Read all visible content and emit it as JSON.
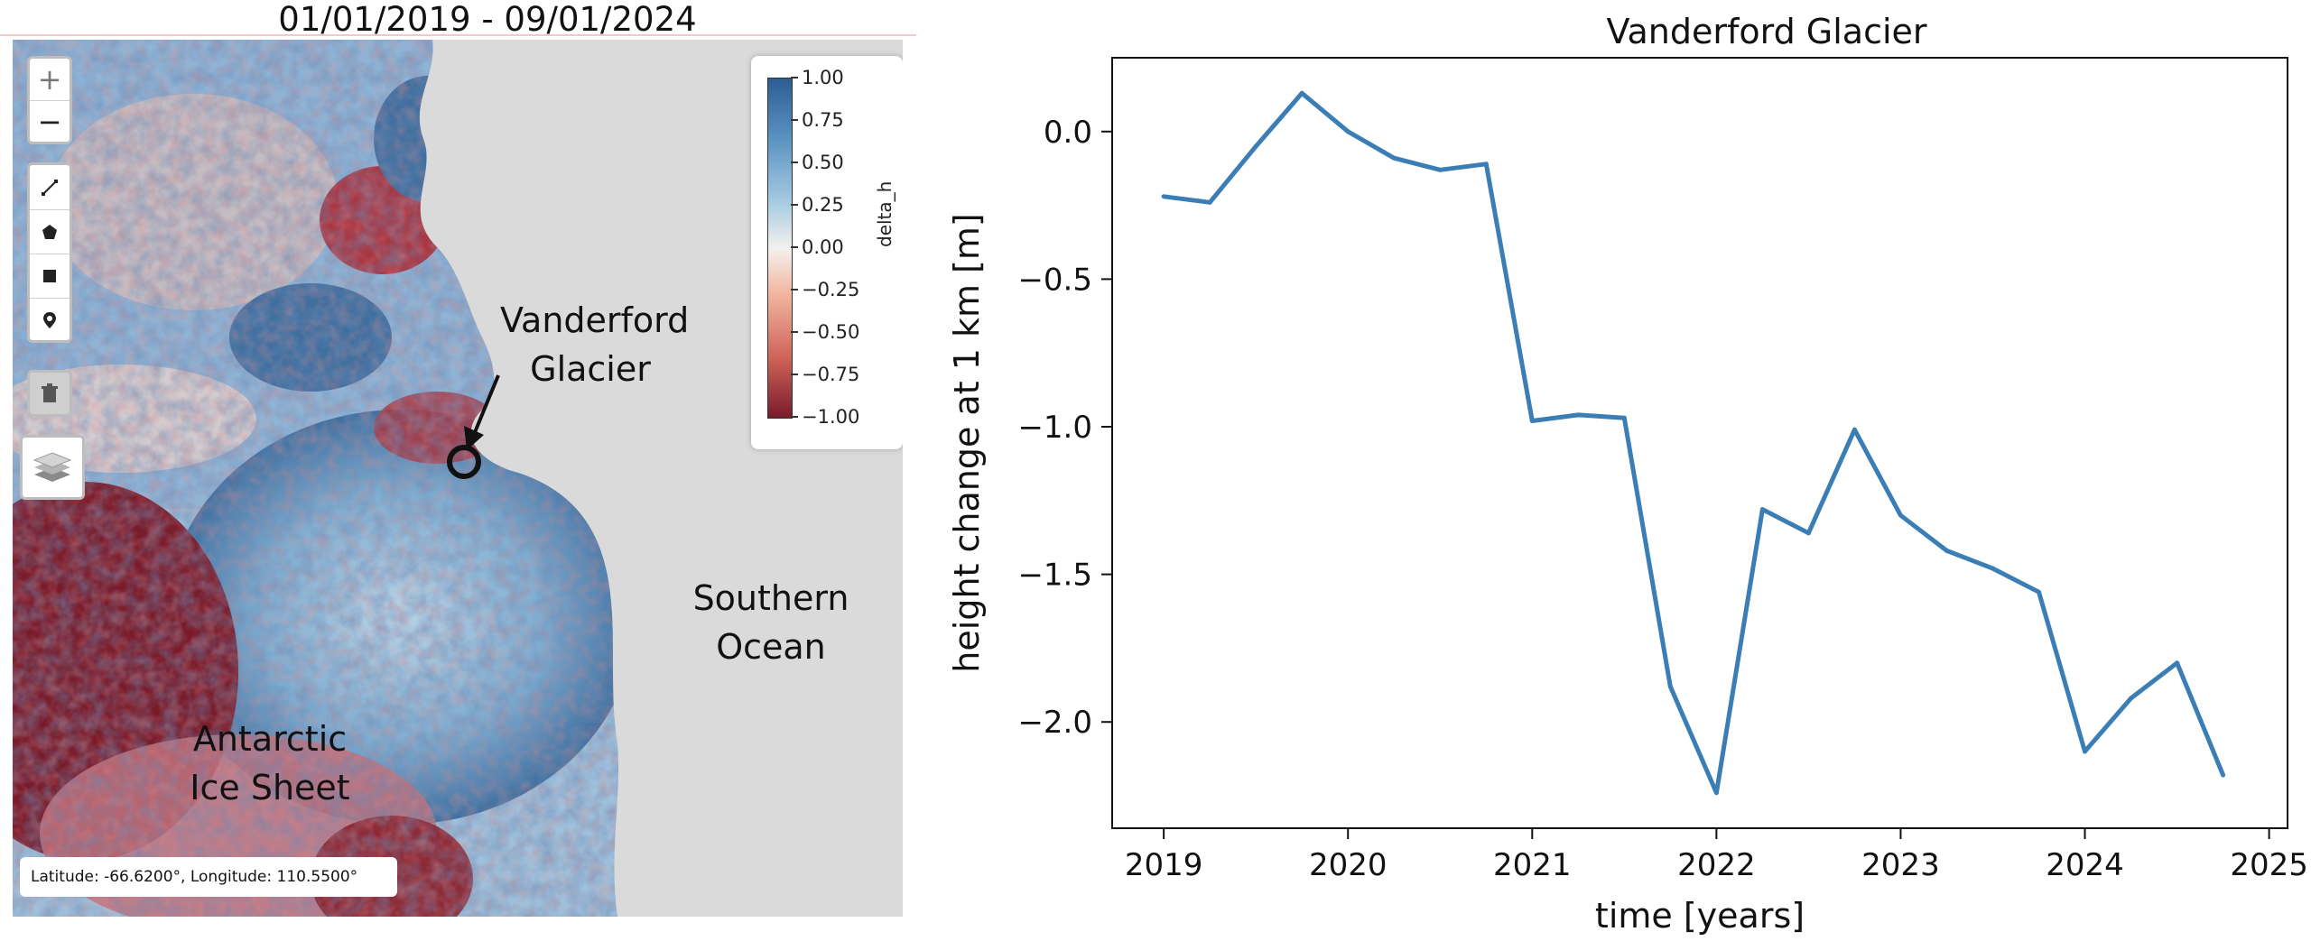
{
  "map_panel": {
    "title": "01/01/2019 - 09/01/2024",
    "labels": {
      "glacier_line1": "Vanderford",
      "glacier_line2": "Glacier",
      "ocean_line1": "Southern",
      "ocean_line2": "Ocean",
      "icesheet_line1": "Antarctic",
      "icesheet_line2": "Ice Sheet"
    },
    "controls": {
      "zoom_in": "+",
      "zoom_out": "−",
      "draw_tools": [
        "polyline-icon",
        "polygon-icon",
        "rectangle-icon",
        "marker-icon"
      ],
      "delete": "trash-icon",
      "layers": "layers-icon"
    },
    "colorbar": {
      "title": "delta_h",
      "ticks": [
        "1.00",
        "0.75",
        "0.50",
        "0.25",
        "0.00",
        "−0.25",
        "−0.50",
        "−0.75",
        "−1.00"
      ],
      "colors": {
        "high": "#2c5d93",
        "mid": "#f4f1ee",
        "low": "#7a1b2a"
      }
    },
    "coordinates": "Latitude: -66.6200°, Longitude: 110.5500°"
  },
  "chart_data": {
    "type": "line",
    "title": "Vanderford Glacier",
    "xlabel": "time [years]",
    "ylabel": "height change at 1 km [m]",
    "xlim": [
      2018.72,
      2025.1
    ],
    "ylim": [
      -2.36,
      0.25
    ],
    "xticks": [
      2019,
      2020,
      2021,
      2022,
      2023,
      2024,
      2025
    ],
    "yticks": [
      0.0,
      -0.5,
      -1.0,
      -1.5,
      -2.0
    ],
    "ytick_labels": [
      "0.0",
      "−0.5",
      "−1.0",
      "−1.5",
      "−2.0"
    ],
    "series": [
      {
        "name": "height change",
        "color": "#3b7eb5",
        "x": [
          2019.0,
          2019.25,
          2019.5,
          2019.75,
          2020.0,
          2020.25,
          2020.5,
          2020.75,
          2021.0,
          2021.25,
          2021.5,
          2021.75,
          2022.0,
          2022.25,
          2022.5,
          2022.75,
          2023.0,
          2023.25,
          2023.5,
          2023.75,
          2024.0,
          2024.25,
          2024.5,
          2024.75
        ],
        "y": [
          -0.22,
          -0.24,
          -0.05,
          0.13,
          0.0,
          -0.09,
          -0.13,
          -0.11,
          -0.98,
          -0.96,
          -0.97,
          -1.88,
          -2.24,
          -1.28,
          -1.36,
          -1.01,
          -1.3,
          -1.42,
          -1.48,
          -1.56,
          -2.1,
          -1.92,
          -1.8,
          -2.18
        ]
      }
    ]
  }
}
